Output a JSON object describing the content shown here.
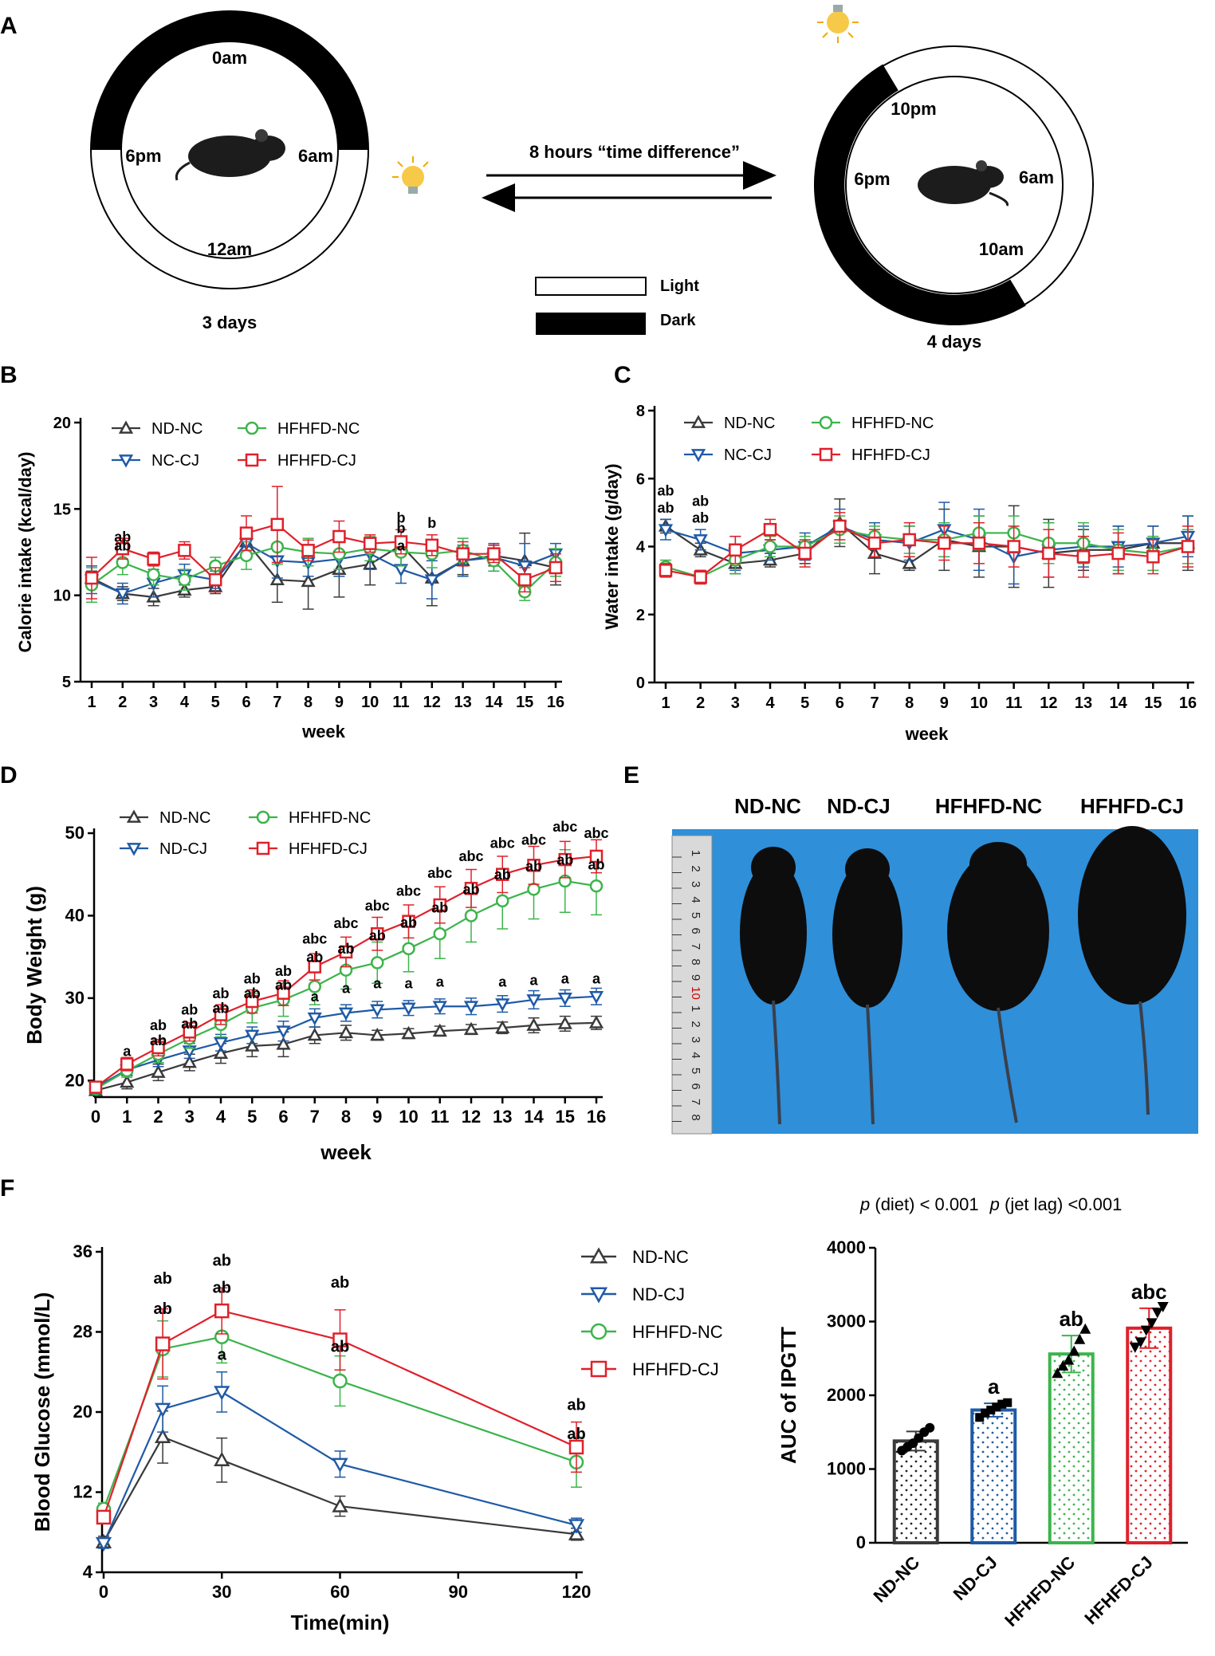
{
  "panels": {
    "A": "A",
    "B": "B",
    "C": "C",
    "D": "D",
    "E": "E",
    "F": "F"
  },
  "panel_a": {
    "left_clock": {
      "top": "0am",
      "left": "6pm",
      "right": "6am",
      "bottom": "12am",
      "caption": "3 days"
    },
    "right_clock": {
      "top": "10pm",
      "left": "6pm",
      "right": "6am",
      "bottom": "10am",
      "caption": "4 days"
    },
    "arrow_label": "8 hours “time difference”",
    "legend": {
      "light": "Light",
      "dark": "Dark"
    },
    "icons": [
      "mouse-icon",
      "light-bulb-icon"
    ]
  },
  "panel_e": {
    "labels": [
      "ND-NC",
      "ND-CJ",
      "HFHFD-NC",
      "HFHFD-CJ"
    ],
    "ruler_digits": [
      "1",
      "2",
      "3",
      "4",
      "5",
      "6",
      "7",
      "8",
      "9",
      "10",
      "1",
      "2",
      "3",
      "4",
      "5",
      "6",
      "7",
      "8"
    ]
  },
  "colors": {
    "nd_nc": "#3a3a3a",
    "nd_cj": "#1f5aa6",
    "hfhfd_nc": "#3cb44b",
    "hfhfd_cj": "#e0202a",
    "photo_bg": "#2f8fd9"
  },
  "chart_data": [
    {
      "id": "B",
      "type": "line",
      "xlabel": "week",
      "ylabel": "Calorie intake (kcal/day)",
      "ylim": [
        5,
        20
      ],
      "yticks": [
        5,
        10,
        15,
        20
      ],
      "x": [
        1,
        2,
        3,
        4,
        5,
        6,
        7,
        8,
        9,
        10,
        11,
        12,
        13,
        14,
        15,
        16
      ],
      "series": [
        {
          "name": "ND-NC",
          "values": [
            11.0,
            10.1,
            9.9,
            10.3,
            10.5,
            13.1,
            10.9,
            10.8,
            11.5,
            11.8,
            12.9,
            11.0,
            12.0,
            12.3,
            12.0,
            11.6
          ],
          "errors": [
            0.4,
            0.4,
            0.5,
            0.4,
            0.4,
            0.6,
            1.3,
            1.6,
            1.6,
            1.2,
            0.4,
            1.6,
            0.8,
            0.6,
            1.6,
            1.0
          ]
        },
        {
          "name": "NC-CJ",
          "values": [
            10.9,
            10.1,
            10.7,
            11.2,
            10.9,
            13.0,
            12.0,
            11.9,
            12.1,
            12.4,
            11.5,
            10.9,
            12.0,
            12.2,
            11.7,
            12.4
          ],
          "errors": [
            0.8,
            0.6,
            0.8,
            0.6,
            0.5,
            0.8,
            1.0,
            0.8,
            1.0,
            0.9,
            0.8,
            1.1,
            0.9,
            0.8,
            1.3,
            0.6
          ]
        },
        {
          "name": "HFHFD-NC",
          "values": [
            10.6,
            11.9,
            11.2,
            10.9,
            11.7,
            12.3,
            12.8,
            12.5,
            12.4,
            12.7,
            12.5,
            12.4,
            12.6,
            12.0,
            10.2,
            11.9
          ],
          "errors": [
            1.0,
            0.7,
            0.6,
            0.6,
            0.5,
            0.8,
            1.0,
            0.8,
            0.9,
            0.7,
            0.8,
            0.8,
            0.7,
            0.6,
            0.5,
            0.8
          ]
        },
        {
          "name": "HFHFD-CJ",
          "values": [
            11.0,
            12.7,
            12.1,
            12.6,
            10.9,
            13.6,
            14.1,
            12.6,
            13.4,
            13.0,
            13.1,
            12.9,
            12.4,
            12.4,
            10.9,
            11.6
          ],
          "errors": [
            1.2,
            0.6,
            0.4,
            0.5,
            0.7,
            1.0,
            2.2,
            0.6,
            0.9,
            0.5,
            0.7,
            0.6,
            0.7,
            0.5,
            0.7,
            0.8
          ]
        }
      ],
      "legend": [
        "ND-NC",
        "NC-CJ",
        "HFHFD-NC",
        "HFHFD-CJ"
      ],
      "annotations": [
        {
          "x": 2,
          "y": 13.1,
          "text": "ab"
        },
        {
          "x": 2,
          "y": 12.6,
          "text": "ab"
        },
        {
          "x": 11,
          "y": 14.2,
          "text": "b"
        },
        {
          "x": 11,
          "y": 13.6,
          "text": "b"
        },
        {
          "x": 11,
          "y": 12.6,
          "text": "a"
        },
        {
          "x": 12,
          "y": 13.9,
          "text": "b"
        }
      ]
    },
    {
      "id": "C",
      "type": "line",
      "xlabel": "week",
      "ylabel": "Water intake (g/day)",
      "ylim": [
        0,
        8
      ],
      "yticks": [
        0,
        2,
        4,
        6,
        8
      ],
      "x": [
        1,
        2,
        3,
        4,
        5,
        6,
        7,
        8,
        9,
        10,
        11,
        12,
        13,
        14,
        15,
        16
      ],
      "series": [
        {
          "name": "ND-NC",
          "values": [
            4.6,
            3.9,
            3.5,
            3.6,
            3.8,
            4.7,
            3.8,
            3.5,
            4.2,
            4.0,
            4.0,
            3.8,
            3.9,
            3.9,
            4.1,
            4.1
          ],
          "errors": [
            0.2,
            0.2,
            0.3,
            0.2,
            0.3,
            0.7,
            0.6,
            0.2,
            0.9,
            0.9,
            1.2,
            1.0,
            0.6,
            0.7,
            0.5,
            0.8
          ]
        },
        {
          "name": "NC-CJ",
          "values": [
            4.5,
            4.2,
            3.8,
            3.9,
            4.0,
            4.6,
            4.2,
            4.1,
            4.5,
            4.2,
            3.7,
            3.9,
            4.0,
            4.0,
            4.1,
            4.3
          ],
          "errors": [
            0.3,
            0.3,
            0.5,
            0.3,
            0.4,
            0.5,
            0.5,
            0.5,
            0.8,
            0.9,
            0.8,
            0.8,
            0.6,
            0.6,
            0.5,
            0.6
          ]
        },
        {
          "name": "HFHFD-NC",
          "values": [
            3.4,
            3.1,
            3.6,
            4.0,
            4.0,
            4.5,
            4.3,
            4.2,
            4.2,
            4.4,
            4.4,
            4.1,
            4.1,
            3.9,
            3.8,
            4.0
          ],
          "errors": [
            0.2,
            0.2,
            0.4,
            0.3,
            0.3,
            0.4,
            0.3,
            0.4,
            0.5,
            0.5,
            0.5,
            0.6,
            0.6,
            0.6,
            0.5,
            0.5
          ]
        },
        {
          "name": "HFHFD-CJ",
          "values": [
            3.3,
            3.1,
            3.9,
            4.5,
            3.8,
            4.6,
            4.1,
            4.2,
            4.1,
            4.1,
            4.0,
            3.8,
            3.7,
            3.8,
            3.7,
            4.0
          ],
          "errors": [
            0.2,
            0.2,
            0.4,
            0.3,
            0.4,
            0.4,
            0.4,
            0.5,
            0.5,
            0.6,
            0.6,
            0.7,
            0.6,
            0.6,
            0.5,
            0.6
          ]
        }
      ],
      "legend": [
        "ND-NC",
        "NC-CJ",
        "HFHFD-NC",
        "HFHFD-CJ"
      ],
      "annotations": [
        {
          "x": 1,
          "y": 5.5,
          "text": "ab"
        },
        {
          "x": 1,
          "y": 5.0,
          "text": "ab"
        },
        {
          "x": 2,
          "y": 5.2,
          "text": "ab"
        },
        {
          "x": 2,
          "y": 4.7,
          "text": "ab"
        }
      ]
    },
    {
      "id": "D",
      "type": "line",
      "xlabel": "week",
      "ylabel": "Body Weight (g)",
      "ylim": [
        18,
        50
      ],
      "yticks": [
        20,
        30,
        40,
        50
      ],
      "x": [
        0,
        1,
        2,
        3,
        4,
        5,
        6,
        7,
        8,
        9,
        10,
        11,
        12,
        13,
        14,
        15,
        16
      ],
      "series": [
        {
          "name": "ND-NC",
          "values": [
            18.8,
            19.8,
            21.0,
            22.2,
            23.3,
            24.2,
            24.4,
            25.5,
            25.8,
            25.5,
            25.7,
            26.0,
            26.2,
            26.4,
            26.7,
            26.9,
            27.0
          ],
          "errors": [
            0.5,
            0.8,
            1.0,
            1.0,
            1.2,
            1.3,
            1.5,
            1.0,
            0.9,
            0.6,
            0.6,
            0.6,
            0.6,
            0.7,
            0.9,
            0.9,
            0.8
          ]
        },
        {
          "name": "ND-CJ",
          "values": [
            19.2,
            21.3,
            22.5,
            23.6,
            24.6,
            25.5,
            26.0,
            27.6,
            28.2,
            28.6,
            28.8,
            29.0,
            29.0,
            29.3,
            29.8,
            30.0,
            30.2
          ],
          "errors": [
            0.5,
            0.6,
            0.8,
            0.9,
            1.0,
            1.0,
            1.2,
            1.1,
            1.0,
            1.0,
            0.9,
            0.9,
            1.0,
            1.0,
            1.1,
            1.0,
            1.0
          ]
        },
        {
          "name": "HFHFD-NC",
          "values": [
            19.0,
            21.2,
            23.2,
            25.1,
            26.8,
            28.8,
            29.8,
            31.4,
            33.4,
            34.3,
            36.0,
            37.8,
            40.0,
            41.8,
            43.2,
            44.2,
            43.6
          ],
          "errors": [
            0.6,
            0.8,
            1.0,
            1.2,
            1.5,
            1.8,
            2.0,
            2.2,
            2.3,
            2.5,
            2.8,
            3.0,
            3.2,
            3.4,
            3.6,
            3.8,
            3.5
          ]
        },
        {
          "name": "HFHFD-CJ",
          "values": [
            19.2,
            22.0,
            24.0,
            25.9,
            28.0,
            29.6,
            30.6,
            33.8,
            35.6,
            37.8,
            39.3,
            41.3,
            43.3,
            45.0,
            46.1,
            46.8,
            47.2
          ],
          "errors": [
            0.5,
            0.8,
            1.0,
            1.1,
            1.2,
            1.4,
            1.5,
            1.6,
            1.8,
            2.0,
            2.0,
            2.2,
            2.3,
            2.2,
            2.3,
            2.2,
            2.0
          ]
        }
      ],
      "legend": [
        "ND-NC",
        "ND-CJ",
        "HFHFD-NC",
        "HFHFD-CJ"
      ],
      "annotations": [
        {
          "x": 1,
          "y": 23.0,
          "text": "a"
        },
        {
          "x": 2,
          "y": 26.1,
          "text": "ab"
        },
        {
          "x": 2,
          "y": 24.3,
          "text": "ab"
        },
        {
          "x": 3,
          "y": 28.0,
          "text": "ab"
        },
        {
          "x": 3,
          "y": 26.3,
          "text": "ab"
        },
        {
          "x": 4,
          "y": 30.0,
          "text": "ab"
        },
        {
          "x": 4,
          "y": 28.2,
          "text": "ab"
        },
        {
          "x": 5,
          "y": 31.8,
          "text": "ab"
        },
        {
          "x": 5,
          "y": 30.0,
          "text": "ab"
        },
        {
          "x": 6,
          "y": 32.7,
          "text": "ab"
        },
        {
          "x": 6,
          "y": 31.0,
          "text": "ab"
        },
        {
          "x": 7,
          "y": 36.6,
          "text": "abc"
        },
        {
          "x": 7,
          "y": 34.4,
          "text": "ab"
        },
        {
          "x": 7,
          "y": 29.6,
          "text": "a"
        },
        {
          "x": 8,
          "y": 38.5,
          "text": "abc"
        },
        {
          "x": 8,
          "y": 35.4,
          "text": "ab"
        },
        {
          "x": 8,
          "y": 30.6,
          "text": "a"
        },
        {
          "x": 9,
          "y": 40.6,
          "text": "abc"
        },
        {
          "x": 9,
          "y": 37.0,
          "text": "ab"
        },
        {
          "x": 9,
          "y": 31.2,
          "text": "a"
        },
        {
          "x": 10,
          "y": 42.4,
          "text": "abc"
        },
        {
          "x": 10,
          "y": 38.6,
          "text": "ab"
        },
        {
          "x": 10,
          "y": 31.2,
          "text": "a"
        },
        {
          "x": 11,
          "y": 44.6,
          "text": "abc"
        },
        {
          "x": 11,
          "y": 40.4,
          "text": "ab"
        },
        {
          "x": 11,
          "y": 31.4,
          "text": "a"
        },
        {
          "x": 12,
          "y": 46.6,
          "text": "abc"
        },
        {
          "x": 12,
          "y": 42.6,
          "text": "ab"
        },
        {
          "x": 13,
          "y": 48.2,
          "text": "abc"
        },
        {
          "x": 13,
          "y": 44.4,
          "text": "ab"
        },
        {
          "x": 13,
          "y": 31.4,
          "text": "a"
        },
        {
          "x": 14,
          "y": 48.6,
          "text": "abc"
        },
        {
          "x": 14,
          "y": 45.4,
          "text": "ab"
        },
        {
          "x": 14,
          "y": 31.6,
          "text": "a"
        },
        {
          "x": 15,
          "y": 50.2,
          "text": "abc"
        },
        {
          "x": 15,
          "y": 46.2,
          "text": "ab"
        },
        {
          "x": 15,
          "y": 31.8,
          "text": "a"
        },
        {
          "x": 16,
          "y": 49.4,
          "text": "abc"
        },
        {
          "x": 16,
          "y": 45.6,
          "text": "ab"
        },
        {
          "x": 16,
          "y": 31.8,
          "text": "a"
        }
      ]
    },
    {
      "id": "F-left",
      "type": "line",
      "xlabel": "Time(min)",
      "ylabel": "Blood Glucose (mmol/L)",
      "xlim": [
        0,
        120
      ],
      "xticks": [
        0,
        30,
        60,
        90,
        120
      ],
      "ylim": [
        4,
        36
      ],
      "yticks": [
        4,
        12,
        20,
        28,
        36
      ],
      "x": [
        0,
        15,
        30,
        60,
        120
      ],
      "series": [
        {
          "name": "ND-NC",
          "values": [
            7.0,
            17.5,
            15.2,
            10.6,
            7.8
          ],
          "errors": [
            0.6,
            2.6,
            2.2,
            1.0,
            0.6
          ]
        },
        {
          "name": "ND-CJ",
          "values": [
            6.9,
            20.3,
            22.0,
            14.8,
            8.7
          ],
          "errors": [
            0.5,
            2.3,
            2.0,
            1.3,
            0.7
          ]
        },
        {
          "name": "HFHFD-NC",
          "values": [
            10.3,
            26.3,
            27.5,
            23.1,
            15.0
          ],
          "errors": [
            0.6,
            2.8,
            2.6,
            2.5,
            2.5
          ]
        },
        {
          "name": "HFHFD-CJ",
          "values": [
            9.5,
            26.8,
            30.1,
            27.2,
            16.5
          ],
          "errors": [
            0.6,
            3.5,
            2.3,
            3.0,
            2.5
          ]
        }
      ],
      "legend": [
        "ND-NC",
        "ND-CJ",
        "HFHFD-NC",
        "HFHFD-CJ"
      ],
      "annotations": [
        {
          "x": 15,
          "y": 32.8,
          "text": "ab"
        },
        {
          "x": 15,
          "y": 29.8,
          "text": "ab"
        },
        {
          "x": 30,
          "y": 34.6,
          "text": "ab"
        },
        {
          "x": 30,
          "y": 31.9,
          "text": "ab"
        },
        {
          "x": 30,
          "y": 25.2,
          "text": "a"
        },
        {
          "x": 60,
          "y": 32.4,
          "text": "ab"
        },
        {
          "x": 60,
          "y": 26.0,
          "text": "ab"
        },
        {
          "x": 120,
          "y": 20.2,
          "text": "ab"
        },
        {
          "x": 120,
          "y": 17.3,
          "text": "ab"
        }
      ]
    },
    {
      "id": "F-right",
      "type": "bar",
      "title": "p (diet) < 0.001  p (jet lag) <0.001",
      "title_parts": {
        "p": "p",
        "diet": " (diet) < 0.001",
        "jetlag": " (jet lag) <0.001"
      },
      "xlabel": "",
      "ylabel": "AUC of IPGTT",
      "ylim": [
        0,
        4000
      ],
      "yticks": [
        0,
        1000,
        2000,
        3000,
        4000
      ],
      "categories": [
        "ND-NC",
        "ND-CJ",
        "HFHFD-NC",
        "HFHFD-CJ"
      ],
      "values": [
        1380,
        1800,
        2560,
        2910
      ],
      "errors": [
        130,
        90,
        250,
        270
      ],
      "labels": [
        "",
        "a",
        "ab",
        "abc"
      ],
      "points": [
        [
          1250,
          1300,
          1350,
          1420,
          1500,
          1560
        ],
        [
          1700,
          1760,
          1800,
          1840,
          1880,
          1900
        ],
        [
          2300,
          2400,
          2480,
          2600,
          2760,
          2900
        ],
        [
          2650,
          2720,
          2880,
          2980,
          3120,
          3200
        ]
      ]
    }
  ]
}
